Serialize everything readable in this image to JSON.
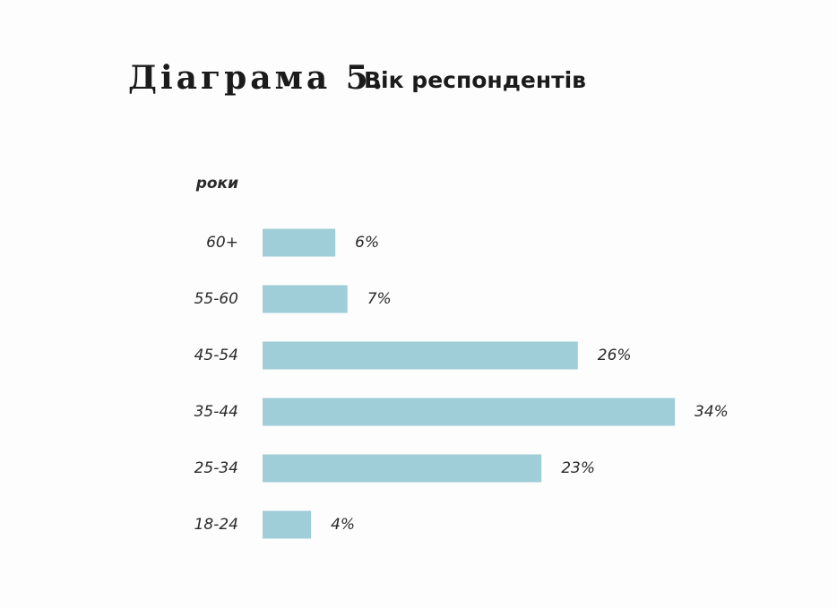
{
  "chart_data": {
    "type": "bar",
    "orientation": "horizontal",
    "title": "Діаграма 5.",
    "subtitle": "Вік респондентів",
    "y_label": "роки",
    "categories": [
      "60+",
      "55-60",
      "45-54",
      "35-44",
      "25-34",
      "18-24"
    ],
    "values": [
      6,
      7,
      26,
      34,
      23,
      4
    ],
    "value_labels": [
      "6%",
      "7%",
      "26%",
      "34%",
      "23%",
      "4%"
    ],
    "color": "#9fcdd8"
  }
}
